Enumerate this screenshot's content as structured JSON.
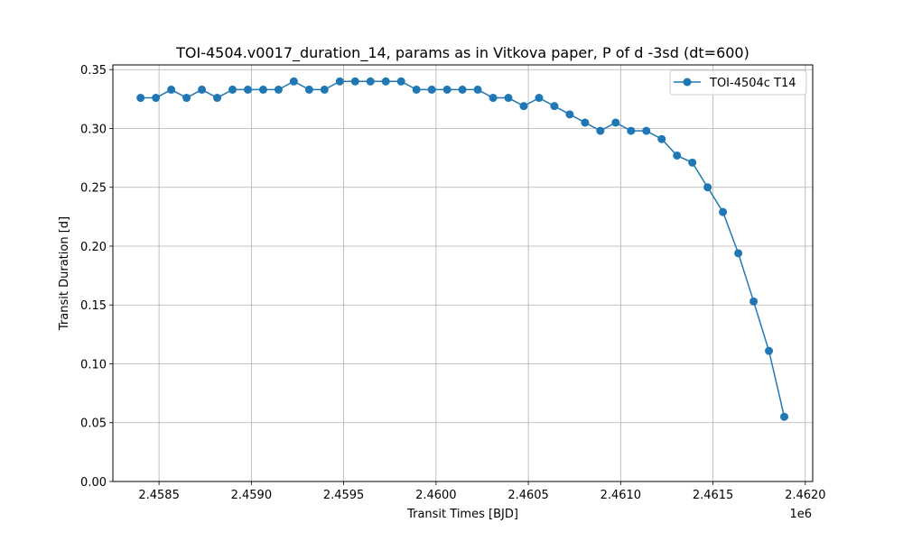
{
  "chart_data": {
    "type": "line",
    "title": "TOI-4504.v0017_duration_14, params as in Vitkova paper, P of d -3sd (dt=600)",
    "xlabel": "Transit Times [BJD]",
    "ylabel": "Transit Duration [d]",
    "x_offset_label": "1e6",
    "xlim": [
      2458250,
      2462040
    ],
    "ylim": [
      0.0,
      0.354
    ],
    "x_ticks": [
      2458500,
      2459000,
      2459500,
      2460000,
      2460500,
      2461000,
      2461500,
      2462000
    ],
    "x_tick_labels": [
      "2.4585",
      "2.4590",
      "2.4595",
      "2.4600",
      "2.4605",
      "2.4610",
      "2.4615",
      "2.4620"
    ],
    "y_ticks": [
      0.0,
      0.05,
      0.1,
      0.15,
      0.2,
      0.25,
      0.3,
      0.35
    ],
    "y_tick_labels": [
      "0.00",
      "0.05",
      "0.10",
      "0.15",
      "0.20",
      "0.25",
      "0.30",
      "0.35"
    ],
    "grid": true,
    "legend_position": "top-right",
    "colors": {
      "series": "#1f77b4",
      "grid": "#b0b0b0",
      "axis": "#000000"
    },
    "series": [
      {
        "name": "TOI-4504c T14",
        "x": [
          2458400,
          2458483,
          2458566,
          2458649,
          2458732,
          2458815,
          2458898,
          2458981,
          2459064,
          2459147,
          2459230,
          2459313,
          2459396,
          2459479,
          2459562,
          2459645,
          2459728,
          2459811,
          2459894,
          2459977,
          2460060,
          2460143,
          2460226,
          2460309,
          2460392,
          2460475,
          2460558,
          2460641,
          2460724,
          2460807,
          2460890,
          2460973,
          2461056,
          2461139,
          2461222,
          2461305,
          2461388,
          2461471,
          2461554,
          2461637,
          2461720,
          2461803,
          2461886
        ],
        "values": [
          0.326,
          0.326,
          0.333,
          0.326,
          0.333,
          0.326,
          0.333,
          0.333,
          0.333,
          0.333,
          0.34,
          0.333,
          0.333,
          0.34,
          0.34,
          0.34,
          0.34,
          0.34,
          0.333,
          0.333,
          0.333,
          0.333,
          0.333,
          0.326,
          0.326,
          0.319,
          0.326,
          0.319,
          0.312,
          0.305,
          0.298,
          0.305,
          0.298,
          0.298,
          0.291,
          0.277,
          0.271,
          0.25,
          0.229,
          0.194,
          0.153,
          0.111,
          0.055
        ]
      }
    ]
  }
}
